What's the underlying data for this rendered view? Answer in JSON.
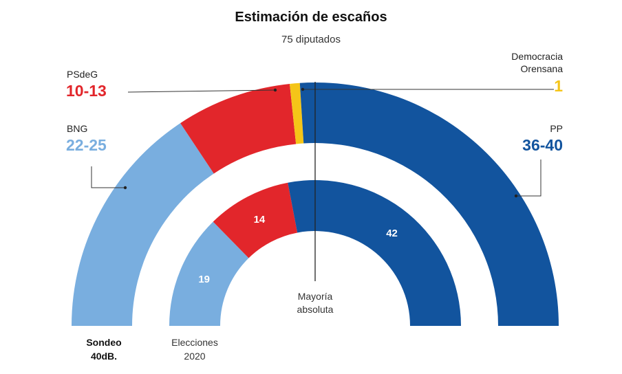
{
  "title": "Estimación de escaños",
  "subtitle": "75 diputados",
  "majority_label_line1": "Mayoría",
  "majority_label_line2": "absoluta",
  "rows": {
    "survey_line1": "Sondeo",
    "survey_line2": "40dB.",
    "election_line1": "Elecciones",
    "election_line2": "2020"
  },
  "labels": {
    "psdeg": {
      "name": "PSdeG",
      "range": "10-13",
      "color": "#e2262b"
    },
    "bng": {
      "name": "BNG",
      "range": "22-25",
      "color": "#79aedf"
    },
    "do": {
      "name_line1": "Democracia",
      "name_line2": "Orensana",
      "range": "1",
      "color": "#f5c518"
    },
    "pp": {
      "name": "PP",
      "range": "36-40",
      "color": "#12549e"
    }
  },
  "chart_data": {
    "type": "parliament-semicircle",
    "title": "Estimación de escaños",
    "subtitle": "75 diputados",
    "total_seats": 75,
    "majority": 38,
    "series": [
      {
        "name": "Sondeo 40dB.",
        "segments": [
          {
            "party": "BNG",
            "range": [
              22,
              25
            ],
            "value": 23.5,
            "color": "#79aedf"
          },
          {
            "party": "PSdeG",
            "range": [
              10,
              13
            ],
            "value": 11.5,
            "color": "#e2262b"
          },
          {
            "party": "Democracia Orensana",
            "range": [
              1,
              1
            ],
            "value": 1,
            "color": "#f5c518"
          },
          {
            "party": "PP",
            "range": [
              36,
              40
            ],
            "value": 39,
            "color": "#12549e"
          }
        ]
      },
      {
        "name": "Elecciones 2020",
        "segments": [
          {
            "party": "BNG",
            "value": 19,
            "color": "#79aedf"
          },
          {
            "party": "PSdeG",
            "value": 14,
            "color": "#e2262b"
          },
          {
            "party": "PP",
            "value": 42,
            "color": "#12549e"
          }
        ]
      }
    ]
  }
}
